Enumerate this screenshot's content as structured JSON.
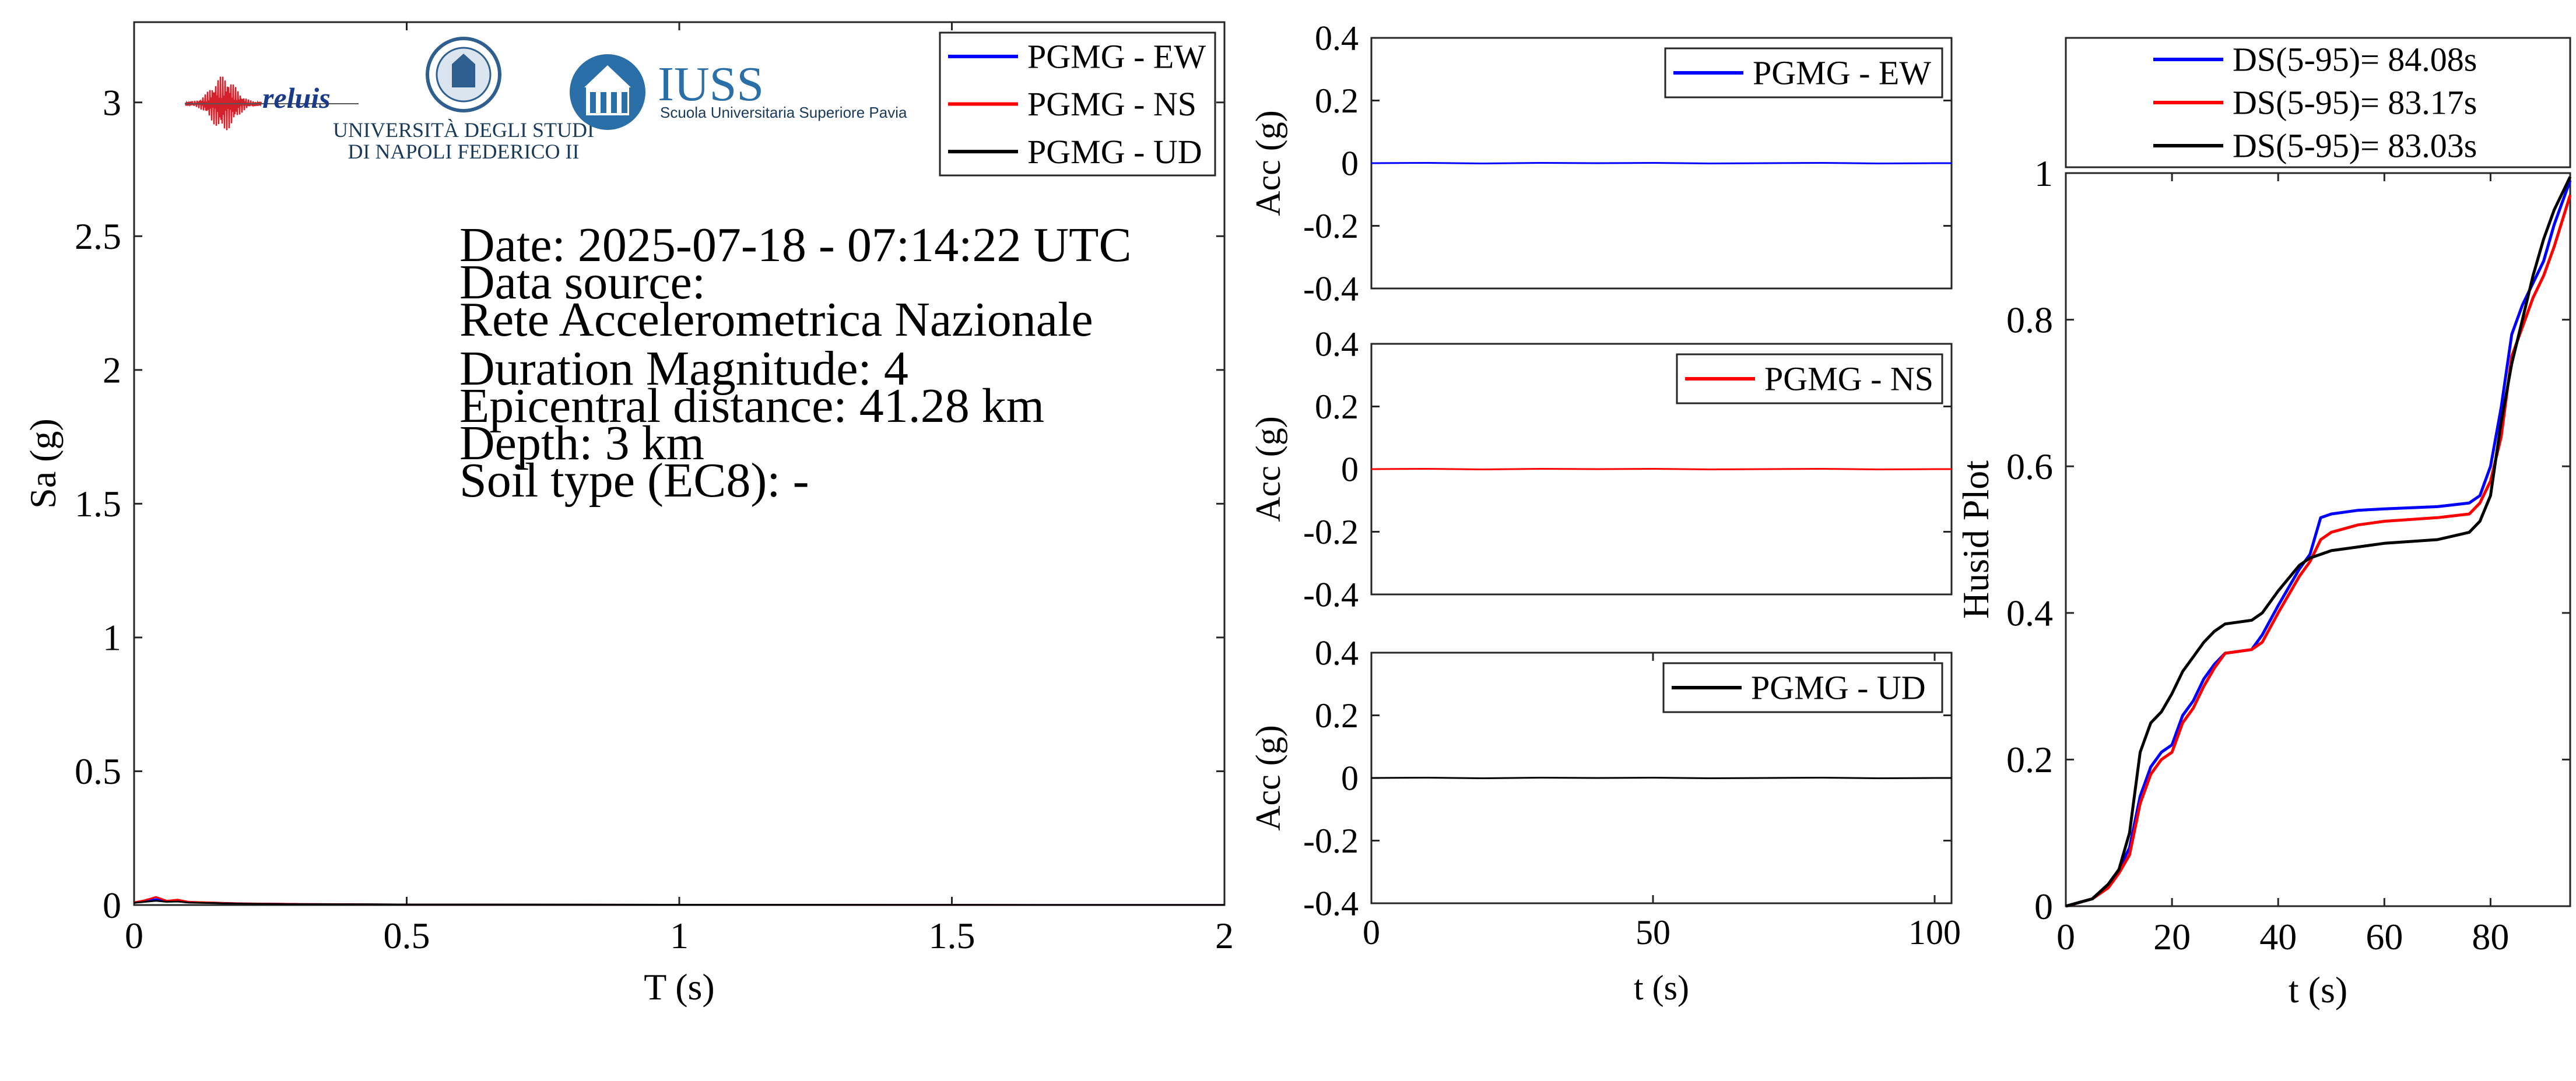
{
  "colors": {
    "ew": "#0000ff",
    "ns": "#ff0000",
    "ud": "#000000"
  },
  "info": {
    "lines": [
      "Date: 2025-07-18 - 07:14:22 UTC",
      "Data source:",
      "Rete Accelerometrica Nazionale",
      "Duration Magnitude: 4",
      "Epicentral distance: 41.28 km",
      "Depth: 3 km",
      "Soil type (EC8): -"
    ]
  },
  "logos": {
    "reluis": "reluis",
    "unina_line1": "UNIVERSITÀ DEGLI STUDI",
    "unina_line2": "DI NAPOLI FEDERICO II",
    "iuss": "IUSS",
    "iuss_sub": "Scuola Universitaria Superiore Pavia"
  },
  "chart_data": [
    {
      "id": "spectrum",
      "type": "line",
      "xlabel": "T (s)",
      "ylabel": "Sa (g)",
      "xlim": [
        0,
        2
      ],
      "ylim": [
        0,
        3.3
      ],
      "xticks": [
        0,
        0.5,
        1,
        1.5,
        2
      ],
      "xtick_labels": [
        "0",
        "0.5",
        "1",
        "1.5",
        "2"
      ],
      "yticks": [
        0,
        0.5,
        1,
        1.5,
        2,
        2.5,
        3
      ],
      "ytick_labels": [
        "0",
        "0.5",
        "1",
        "1.5",
        "2",
        "2.5",
        "3"
      ],
      "legend_position": "top-right",
      "series": [
        {
          "name": "PGMG - EW",
          "color": "#0000ff",
          "x": [
            0,
            0.02,
            0.04,
            0.06,
            0.08,
            0.1,
            0.15,
            0.2,
            0.3,
            0.5,
            1,
            1.5,
            2
          ],
          "y": [
            0.01,
            0.016,
            0.022,
            0.014,
            0.017,
            0.011,
            0.008,
            0.006,
            0.004,
            0.002,
            0.001,
            0.0005,
            0.0003
          ]
        },
        {
          "name": "PGMG - NS",
          "color": "#ff0000",
          "x": [
            0,
            0.02,
            0.04,
            0.06,
            0.08,
            0.1,
            0.15,
            0.2,
            0.3,
            0.5,
            1,
            1.5,
            2
          ],
          "y": [
            0.01,
            0.018,
            0.03,
            0.016,
            0.02,
            0.012,
            0.009,
            0.006,
            0.004,
            0.002,
            0.001,
            0.0005,
            0.0003
          ]
        },
        {
          "name": "PGMG - UD",
          "color": "#000000",
          "x": [
            0,
            0.02,
            0.04,
            0.06,
            0.08,
            0.1,
            0.15,
            0.2,
            0.3,
            0.5,
            1,
            1.5,
            2
          ],
          "y": [
            0.008,
            0.012,
            0.016,
            0.012,
            0.013,
            0.009,
            0.007,
            0.005,
            0.003,
            0.002,
            0.001,
            0.0005,
            0.0003
          ]
        }
      ]
    },
    {
      "id": "acc-ew",
      "type": "line",
      "xlabel": "",
      "ylabel": "Acc (g)",
      "xlim": [
        0,
        103
      ],
      "ylim": [
        -0.4,
        0.4
      ],
      "yticks": [
        -0.4,
        -0.2,
        0,
        0.2,
        0.4
      ],
      "ytick_labels": [
        "-0.4",
        "-0.2",
        "0",
        "0.2",
        "0.4"
      ],
      "legend_position": "top-right",
      "series": [
        {
          "name": "PGMG - EW",
          "color": "#0000ff",
          "x": [
            0,
            10,
            20,
            30,
            40,
            50,
            60,
            70,
            80,
            90,
            100,
            103
          ],
          "y": [
            0,
            0.001,
            -0.001,
            0.001,
            0,
            0.001,
            -0.001,
            0,
            0.001,
            -0.001,
            0,
            0
          ]
        }
      ]
    },
    {
      "id": "acc-ns",
      "type": "line",
      "xlabel": "",
      "ylabel": "Acc (g)",
      "xlim": [
        0,
        103
      ],
      "ylim": [
        -0.4,
        0.4
      ],
      "yticks": [
        -0.4,
        -0.2,
        0,
        0.2,
        0.4
      ],
      "ytick_labels": [
        "-0.4",
        "-0.2",
        "0",
        "0.2",
        "0.4"
      ],
      "legend_position": "top-right",
      "series": [
        {
          "name": "PGMG - NS",
          "color": "#ff0000",
          "x": [
            0,
            10,
            20,
            30,
            40,
            50,
            60,
            70,
            80,
            90,
            100,
            103
          ],
          "y": [
            0,
            0.001,
            -0.001,
            0.001,
            0,
            0.001,
            -0.001,
            0,
            0.001,
            -0.001,
            0,
            0
          ]
        }
      ]
    },
    {
      "id": "acc-ud",
      "type": "line",
      "xlabel": "t (s)",
      "ylabel": "Acc (g)",
      "xlim": [
        0,
        103
      ],
      "ylim": [
        -0.4,
        0.4
      ],
      "xticks": [
        0,
        50,
        100
      ],
      "xtick_labels": [
        "0",
        "50",
        "100"
      ],
      "yticks": [
        -0.4,
        -0.2,
        0,
        0.2,
        0.4
      ],
      "ytick_labels": [
        "-0.4",
        "-0.2",
        "0",
        "0.2",
        "0.4"
      ],
      "legend_position": "top-right",
      "series": [
        {
          "name": "PGMG - UD",
          "color": "#000000",
          "x": [
            0,
            10,
            20,
            30,
            40,
            50,
            60,
            70,
            80,
            90,
            100,
            103
          ],
          "y": [
            0,
            0.001,
            -0.001,
            0.001,
            0,
            0.001,
            -0.001,
            0,
            0.001,
            -0.001,
            0,
            0
          ]
        }
      ]
    },
    {
      "id": "husid",
      "type": "line",
      "xlabel": "t (s)",
      "ylabel": "Husid Plot",
      "xlim": [
        0,
        95
      ],
      "ylim": [
        0,
        1
      ],
      "xticks": [
        0,
        20,
        40,
        60,
        80
      ],
      "xtick_labels": [
        "0",
        "20",
        "40",
        "60",
        "80"
      ],
      "yticks": [
        0,
        0.2,
        0.4,
        0.6,
        0.8,
        1
      ],
      "ytick_labels": [
        "0",
        "0.2",
        "0.4",
        "0.6",
        "0.8",
        "1"
      ],
      "legend_position": "top (outside)",
      "series": [
        {
          "name": "DS(5-95)= 84.08s",
          "color": "#0000ff",
          "x": [
            0,
            5,
            8,
            10,
            12,
            14,
            16,
            18,
            20,
            22,
            24,
            26,
            28,
            30,
            35,
            37,
            40,
            44,
            46,
            48,
            50,
            55,
            60,
            70,
            76,
            78,
            80,
            82,
            84,
            86,
            88,
            90,
            92,
            95
          ],
          "y": [
            0,
            0.01,
            0.03,
            0.05,
            0.08,
            0.15,
            0.19,
            0.21,
            0.22,
            0.26,
            0.28,
            0.31,
            0.33,
            0.345,
            0.35,
            0.37,
            0.41,
            0.46,
            0.48,
            0.53,
            0.535,
            0.54,
            0.542,
            0.545,
            0.55,
            0.56,
            0.6,
            0.68,
            0.78,
            0.82,
            0.85,
            0.88,
            0.93,
            0.99
          ]
        },
        {
          "name": "DS(5-95)= 83.17s",
          "color": "#ff0000",
          "x": [
            0,
            5,
            8,
            10,
            12,
            14,
            16,
            18,
            20,
            22,
            24,
            26,
            28,
            30,
            35,
            37,
            40,
            44,
            46,
            48,
            50,
            55,
            60,
            70,
            76,
            78,
            80,
            82,
            84,
            86,
            88,
            90,
            92,
            95
          ],
          "y": [
            0,
            0.01,
            0.025,
            0.045,
            0.07,
            0.14,
            0.18,
            0.2,
            0.21,
            0.25,
            0.27,
            0.3,
            0.325,
            0.345,
            0.35,
            0.36,
            0.4,
            0.45,
            0.47,
            0.5,
            0.51,
            0.52,
            0.525,
            0.53,
            0.535,
            0.55,
            0.58,
            0.64,
            0.75,
            0.79,
            0.83,
            0.86,
            0.9,
            0.97
          ]
        },
        {
          "name": "DS(5-95)= 83.03s",
          "color": "#000000",
          "x": [
            0,
            5,
            8,
            10,
            12,
            14,
            16,
            18,
            20,
            22,
            24,
            26,
            28,
            30,
            35,
            37,
            40,
            44,
            46,
            48,
            50,
            55,
            60,
            70,
            76,
            78,
            80,
            82,
            84,
            86,
            88,
            90,
            92,
            95
          ],
          "y": [
            0,
            0.01,
            0.03,
            0.05,
            0.1,
            0.21,
            0.25,
            0.265,
            0.29,
            0.32,
            0.34,
            0.36,
            0.375,
            0.385,
            0.39,
            0.4,
            0.43,
            0.465,
            0.475,
            0.48,
            0.485,
            0.49,
            0.495,
            0.5,
            0.51,
            0.525,
            0.56,
            0.66,
            0.74,
            0.8,
            0.86,
            0.91,
            0.95,
            0.995
          ]
        }
      ]
    }
  ]
}
